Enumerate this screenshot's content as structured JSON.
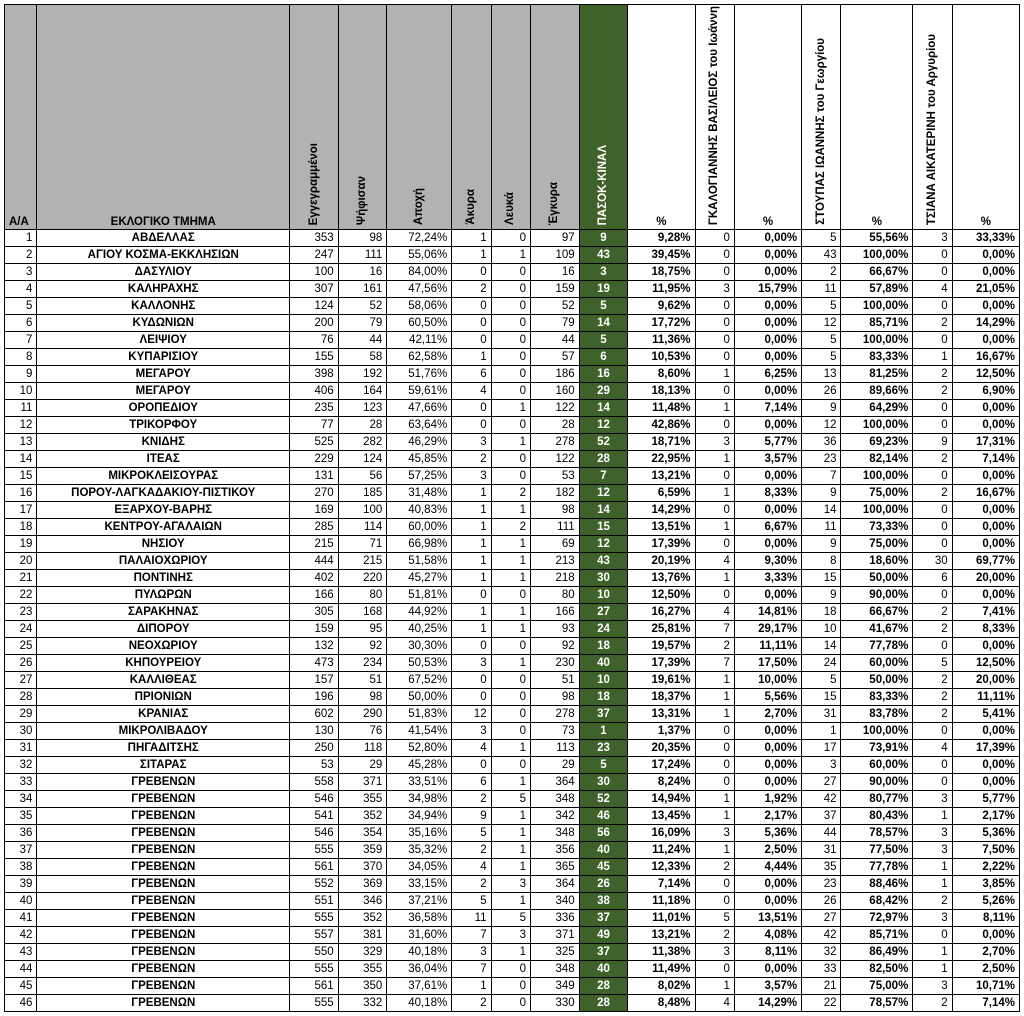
{
  "headers": {
    "aa": "A/A",
    "name": "ΕΚΛΟΓΙΚΟ ΤΜΗΜΑ",
    "registered": "Εγγεγραμμένοι",
    "voted": "Ψήφισαν",
    "abstain": "Αποχή",
    "invalid": "Άκυρα",
    "blank": "Λευκά",
    "valid": "Έγκυρα",
    "party": "ΠΑΣΟΚ-ΚΙΝΑΛ",
    "pct": "%",
    "cand1": "ΓΚΑΛΟΓΙΑΝΝΗΣ ΒΑΣΙΛΕΙΟΣ του Ιωάννη",
    "cand2": "ΣΤΟΥΠΑΣ ΙΩΑΝΝΗΣ του Γεωργίου",
    "cand3": "ΤΣΙΑΝΑ ΑΙΚΑΤΕΡΙΝΗ του Αργυρίου"
  },
  "rows": [
    {
      "i": 1,
      "name": "ΑΒΔΕΛΛΑΣ",
      "reg": 353,
      "vot": 98,
      "abs": "72,24%",
      "inv": 1,
      "bl": 0,
      "val": 97,
      "party": 9,
      "ppct": "9,28%",
      "c1": 0,
      "c1p": "0,00%",
      "c2": 5,
      "c2p": "55,56%",
      "c3": 3,
      "c3p": "33,33%"
    },
    {
      "i": 2,
      "name": "ΑΓΙΟΥ ΚΟΣΜΑ-ΕΚΚΛΗΣΙΩΝ",
      "reg": 247,
      "vot": 111,
      "abs": "55,06%",
      "inv": 1,
      "bl": 1,
      "val": 109,
      "party": 43,
      "ppct": "39,45%",
      "c1": 0,
      "c1p": "0,00%",
      "c2": 43,
      "c2p": "100,00%",
      "c3": 0,
      "c3p": "0,00%"
    },
    {
      "i": 3,
      "name": "ΔΑΣΥΛΙΟΥ",
      "reg": 100,
      "vot": 16,
      "abs": "84,00%",
      "inv": 0,
      "bl": 0,
      "val": 16,
      "party": 3,
      "ppct": "18,75%",
      "c1": 0,
      "c1p": "0,00%",
      "c2": 2,
      "c2p": "66,67%",
      "c3": 0,
      "c3p": "0,00%"
    },
    {
      "i": 4,
      "name": "ΚΑΛΗΡΑΧΗΣ",
      "reg": 307,
      "vot": 161,
      "abs": "47,56%",
      "inv": 2,
      "bl": 0,
      "val": 159,
      "party": 19,
      "ppct": "11,95%",
      "c1": 3,
      "c1p": "15,79%",
      "c2": 11,
      "c2p": "57,89%",
      "c3": 4,
      "c3p": "21,05%"
    },
    {
      "i": 5,
      "name": "ΚΑΛΛΟΝΗΣ",
      "reg": 124,
      "vot": 52,
      "abs": "58,06%",
      "inv": 0,
      "bl": 0,
      "val": 52,
      "party": 5,
      "ppct": "9,62%",
      "c1": 0,
      "c1p": "0,00%",
      "c2": 5,
      "c2p": "100,00%",
      "c3": 0,
      "c3p": "0,00%"
    },
    {
      "i": 6,
      "name": "ΚΥΔΩΝΙΩΝ",
      "reg": 200,
      "vot": 79,
      "abs": "60,50%",
      "inv": 0,
      "bl": 0,
      "val": 79,
      "party": 14,
      "ppct": "17,72%",
      "c1": 0,
      "c1p": "0,00%",
      "c2": 12,
      "c2p": "85,71%",
      "c3": 2,
      "c3p": "14,29%"
    },
    {
      "i": 7,
      "name": "ΛΕΙΨΙΟΥ",
      "reg": 76,
      "vot": 44,
      "abs": "42,11%",
      "inv": 0,
      "bl": 0,
      "val": 44,
      "party": 5,
      "ppct": "11,36%",
      "c1": 0,
      "c1p": "0,00%",
      "c2": 5,
      "c2p": "100,00%",
      "c3": 0,
      "c3p": "0,00%"
    },
    {
      "i": 8,
      "name": "ΚΥΠΑΡΙΣΙΟΥ",
      "reg": 155,
      "vot": 58,
      "abs": "62,58%",
      "inv": 1,
      "bl": 0,
      "val": 57,
      "party": 6,
      "ppct": "10,53%",
      "c1": 0,
      "c1p": "0,00%",
      "c2": 5,
      "c2p": "83,33%",
      "c3": 1,
      "c3p": "16,67%"
    },
    {
      "i": 9,
      "name": "ΜΕΓΑΡΟΥ",
      "reg": 398,
      "vot": 192,
      "abs": "51,76%",
      "inv": 6,
      "bl": 0,
      "val": 186,
      "party": 16,
      "ppct": "8,60%",
      "c1": 1,
      "c1p": "6,25%",
      "c2": 13,
      "c2p": "81,25%",
      "c3": 2,
      "c3p": "12,50%"
    },
    {
      "i": 10,
      "name": "ΜΕΓΑΡΟΥ",
      "reg": 406,
      "vot": 164,
      "abs": "59,61%",
      "inv": 4,
      "bl": 0,
      "val": 160,
      "party": 29,
      "ppct": "18,13%",
      "c1": 0,
      "c1p": "0,00%",
      "c2": 26,
      "c2p": "89,66%",
      "c3": 2,
      "c3p": "6,90%"
    },
    {
      "i": 11,
      "name": "ΟΡΟΠΕΔΙΟΥ",
      "reg": 235,
      "vot": 123,
      "abs": "47,66%",
      "inv": 0,
      "bl": 1,
      "val": 122,
      "party": 14,
      "ppct": "11,48%",
      "c1": 1,
      "c1p": "7,14%",
      "c2": 9,
      "c2p": "64,29%",
      "c3": 0,
      "c3p": "0,00%"
    },
    {
      "i": 12,
      "name": "ΤΡΙΚΟΡΦΟΥ",
      "reg": 77,
      "vot": 28,
      "abs": "63,64%",
      "inv": 0,
      "bl": 0,
      "val": 28,
      "party": 12,
      "ppct": "42,86%",
      "c1": 0,
      "c1p": "0,00%",
      "c2": 12,
      "c2p": "100,00%",
      "c3": 0,
      "c3p": "0,00%"
    },
    {
      "i": 13,
      "name": "ΚΝΙΔΗΣ",
      "reg": 525,
      "vot": 282,
      "abs": "46,29%",
      "inv": 3,
      "bl": 1,
      "val": 278,
      "party": 52,
      "ppct": "18,71%",
      "c1": 3,
      "c1p": "5,77%",
      "c2": 36,
      "c2p": "69,23%",
      "c3": 9,
      "c3p": "17,31%"
    },
    {
      "i": 14,
      "name": "ΙΤΕΑΣ",
      "reg": 229,
      "vot": 124,
      "abs": "45,85%",
      "inv": 2,
      "bl": 0,
      "val": 122,
      "party": 28,
      "ppct": "22,95%",
      "c1": 1,
      "c1p": "3,57%",
      "c2": 23,
      "c2p": "82,14%",
      "c3": 2,
      "c3p": "7,14%"
    },
    {
      "i": 15,
      "name": "ΜΙΚΡΟΚΛΕΙΣΟΥΡΑΣ",
      "reg": 131,
      "vot": 56,
      "abs": "57,25%",
      "inv": 3,
      "bl": 0,
      "val": 53,
      "party": 7,
      "ppct": "13,21%",
      "c1": 0,
      "c1p": "0,00%",
      "c2": 7,
      "c2p": "100,00%",
      "c3": 0,
      "c3p": "0,00%"
    },
    {
      "i": 16,
      "name": "ΠΟΡΟΥ-ΛΑΓΚΑΔΑΚΙΟΥ-ΠΙΣΤΙΚΟΥ",
      "reg": 270,
      "vot": 185,
      "abs": "31,48%",
      "inv": 1,
      "bl": 2,
      "val": 182,
      "party": 12,
      "ppct": "6,59%",
      "c1": 1,
      "c1p": "8,33%",
      "c2": 9,
      "c2p": "75,00%",
      "c3": 2,
      "c3p": "16,67%"
    },
    {
      "i": 17,
      "name": "ΕΞΑΡΧΟΥ-ΒΑΡΗΣ",
      "reg": 169,
      "vot": 100,
      "abs": "40,83%",
      "inv": 1,
      "bl": 1,
      "val": 98,
      "party": 14,
      "ppct": "14,29%",
      "c1": 0,
      "c1p": "0,00%",
      "c2": 14,
      "c2p": "100,00%",
      "c3": 0,
      "c3p": "0,00%"
    },
    {
      "i": 18,
      "name": "ΚΕΝΤΡΟΥ-ΑΓΑΛΑΙΩΝ",
      "reg": 285,
      "vot": 114,
      "abs": "60,00%",
      "inv": 1,
      "bl": 2,
      "val": 111,
      "party": 15,
      "ppct": "13,51%",
      "c1": 1,
      "c1p": "6,67%",
      "c2": 11,
      "c2p": "73,33%",
      "c3": 0,
      "c3p": "0,00%"
    },
    {
      "i": 19,
      "name": "ΝΗΣΙΟΥ",
      "reg": 215,
      "vot": 71,
      "abs": "66,98%",
      "inv": 1,
      "bl": 1,
      "val": 69,
      "party": 12,
      "ppct": "17,39%",
      "c1": 0,
      "c1p": "0,00%",
      "c2": 9,
      "c2p": "75,00%",
      "c3": 0,
      "c3p": "0,00%"
    },
    {
      "i": 20,
      "name": "ΠΑΛΑΙΟΧΩΡΙΟΥ",
      "reg": 444,
      "vot": 215,
      "abs": "51,58%",
      "inv": 1,
      "bl": 1,
      "val": 213,
      "party": 43,
      "ppct": "20,19%",
      "c1": 4,
      "c1p": "9,30%",
      "c2": 8,
      "c2p": "18,60%",
      "c3": 30,
      "c3p": "69,77%"
    },
    {
      "i": 21,
      "name": "ΠΟΝΤΙΝΗΣ",
      "reg": 402,
      "vot": 220,
      "abs": "45,27%",
      "inv": 1,
      "bl": 1,
      "val": 218,
      "party": 30,
      "ppct": "13,76%",
      "c1": 1,
      "c1p": "3,33%",
      "c2": 15,
      "c2p": "50,00%",
      "c3": 6,
      "c3p": "20,00%"
    },
    {
      "i": 22,
      "name": "ΠΥΛΩΡΩΝ",
      "reg": 166,
      "vot": 80,
      "abs": "51,81%",
      "inv": 0,
      "bl": 0,
      "val": 80,
      "party": 10,
      "ppct": "12,50%",
      "c1": 0,
      "c1p": "0,00%",
      "c2": 9,
      "c2p": "90,00%",
      "c3": 0,
      "c3p": "0,00%"
    },
    {
      "i": 23,
      "name": "ΣΑΡΑΚΗΝΑΣ",
      "reg": 305,
      "vot": 168,
      "abs": "44,92%",
      "inv": 1,
      "bl": 1,
      "val": 166,
      "party": 27,
      "ppct": "16,27%",
      "c1": 4,
      "c1p": "14,81%",
      "c2": 18,
      "c2p": "66,67%",
      "c3": 2,
      "c3p": "7,41%"
    },
    {
      "i": 24,
      "name": "ΔΙΠΟΡΟΥ",
      "reg": 159,
      "vot": 95,
      "abs": "40,25%",
      "inv": 1,
      "bl": 1,
      "val": 93,
      "party": 24,
      "ppct": "25,81%",
      "c1": 7,
      "c1p": "29,17%",
      "c2": 10,
      "c2p": "41,67%",
      "c3": 2,
      "c3p": "8,33%"
    },
    {
      "i": 25,
      "name": "ΝΕΟΧΩΡΙΟΥ",
      "reg": 132,
      "vot": 92,
      "abs": "30,30%",
      "inv": 0,
      "bl": 0,
      "val": 92,
      "party": 18,
      "ppct": "19,57%",
      "c1": 2,
      "c1p": "11,11%",
      "c2": 14,
      "c2p": "77,78%",
      "c3": 0,
      "c3p": "0,00%"
    },
    {
      "i": 26,
      "name": "ΚΗΠΟΥΡΕΙΟΥ",
      "reg": 473,
      "vot": 234,
      "abs": "50,53%",
      "inv": 3,
      "bl": 1,
      "val": 230,
      "party": 40,
      "ppct": "17,39%",
      "c1": 7,
      "c1p": "17,50%",
      "c2": 24,
      "c2p": "60,00%",
      "c3": 5,
      "c3p": "12,50%"
    },
    {
      "i": 27,
      "name": "ΚΑΛΛΙΘΕΑΣ",
      "reg": 157,
      "vot": 51,
      "abs": "67,52%",
      "inv": 0,
      "bl": 0,
      "val": 51,
      "party": 10,
      "ppct": "19,61%",
      "c1": 1,
      "c1p": "10,00%",
      "c2": 5,
      "c2p": "50,00%",
      "c3": 2,
      "c3p": "20,00%"
    },
    {
      "i": 28,
      "name": "ΠΡΙΟΝΙΩΝ",
      "reg": 196,
      "vot": 98,
      "abs": "50,00%",
      "inv": 0,
      "bl": 0,
      "val": 98,
      "party": 18,
      "ppct": "18,37%",
      "c1": 1,
      "c1p": "5,56%",
      "c2": 15,
      "c2p": "83,33%",
      "c3": 2,
      "c3p": "11,11%"
    },
    {
      "i": 29,
      "name": "ΚΡΑΝΙΑΣ",
      "reg": 602,
      "vot": 290,
      "abs": "51,83%",
      "inv": 12,
      "bl": 0,
      "val": 278,
      "party": 37,
      "ppct": "13,31%",
      "c1": 1,
      "c1p": "2,70%",
      "c2": 31,
      "c2p": "83,78%",
      "c3": 2,
      "c3p": "5,41%"
    },
    {
      "i": 30,
      "name": "ΜΙΚΡΟΛΙΒΑΔΟΥ",
      "reg": 130,
      "vot": 76,
      "abs": "41,54%",
      "inv": 3,
      "bl": 0,
      "val": 73,
      "party": 1,
      "ppct": "1,37%",
      "c1": 0,
      "c1p": "0,00%",
      "c2": 1,
      "c2p": "100,00%",
      "c3": 0,
      "c3p": "0,00%"
    },
    {
      "i": 31,
      "name": "ΠΗΓΑΔΙΤΣΗΣ",
      "reg": 250,
      "vot": 118,
      "abs": "52,80%",
      "inv": 4,
      "bl": 1,
      "val": 113,
      "party": 23,
      "ppct": "20,35%",
      "c1": 0,
      "c1p": "0,00%",
      "c2": 17,
      "c2p": "73,91%",
      "c3": 4,
      "c3p": "17,39%"
    },
    {
      "i": 32,
      "name": "ΣΙΤΑΡΑΣ",
      "reg": 53,
      "vot": 29,
      "abs": "45,28%",
      "inv": 0,
      "bl": 0,
      "val": 29,
      "party": 5,
      "ppct": "17,24%",
      "c1": 0,
      "c1p": "0,00%",
      "c2": 3,
      "c2p": "60,00%",
      "c3": 0,
      "c3p": "0,00%"
    },
    {
      "i": 33,
      "name": "ΓΡΕΒΕΝΩΝ",
      "reg": 558,
      "vot": 371,
      "abs": "33,51%",
      "inv": 6,
      "bl": 1,
      "val": 364,
      "party": 30,
      "ppct": "8,24%",
      "c1": 0,
      "c1p": "0,00%",
      "c2": 27,
      "c2p": "90,00%",
      "c3": 0,
      "c3p": "0,00%"
    },
    {
      "i": 34,
      "name": "ΓΡΕΒΕΝΩΝ",
      "reg": 546,
      "vot": 355,
      "abs": "34,98%",
      "inv": 2,
      "bl": 5,
      "val": 348,
      "party": 52,
      "ppct": "14,94%",
      "c1": 1,
      "c1p": "1,92%",
      "c2": 42,
      "c2p": "80,77%",
      "c3": 3,
      "c3p": "5,77%"
    },
    {
      "i": 35,
      "name": "ΓΡΕΒΕΝΩΝ",
      "reg": 541,
      "vot": 352,
      "abs": "34,94%",
      "inv": 9,
      "bl": 1,
      "val": 342,
      "party": 46,
      "ppct": "13,45%",
      "c1": 1,
      "c1p": "2,17%",
      "c2": 37,
      "c2p": "80,43%",
      "c3": 1,
      "c3p": "2,17%"
    },
    {
      "i": 36,
      "name": "ΓΡΕΒΕΝΩΝ",
      "reg": 546,
      "vot": 354,
      "abs": "35,16%",
      "inv": 5,
      "bl": 1,
      "val": 348,
      "party": 56,
      "ppct": "16,09%",
      "c1": 3,
      "c1p": "5,36%",
      "c2": 44,
      "c2p": "78,57%",
      "c3": 3,
      "c3p": "5,36%"
    },
    {
      "i": 37,
      "name": "ΓΡΕΒΕΝΩΝ",
      "reg": 555,
      "vot": 359,
      "abs": "35,32%",
      "inv": 2,
      "bl": 1,
      "val": 356,
      "party": 40,
      "ppct": "11,24%",
      "c1": 1,
      "c1p": "2,50%",
      "c2": 31,
      "c2p": "77,50%",
      "c3": 3,
      "c3p": "7,50%"
    },
    {
      "i": 38,
      "name": "ΓΡΕΒΕΝΩΝ",
      "reg": 561,
      "vot": 370,
      "abs": "34,05%",
      "inv": 4,
      "bl": 1,
      "val": 365,
      "party": 45,
      "ppct": "12,33%",
      "c1": 2,
      "c1p": "4,44%",
      "c2": 35,
      "c2p": "77,78%",
      "c3": 1,
      "c3p": "2,22%"
    },
    {
      "i": 39,
      "name": "ΓΡΕΒΕΝΩΝ",
      "reg": 552,
      "vot": 369,
      "abs": "33,15%",
      "inv": 2,
      "bl": 3,
      "val": 364,
      "party": 26,
      "ppct": "7,14%",
      "c1": 0,
      "c1p": "0,00%",
      "c2": 23,
      "c2p": "88,46%",
      "c3": 1,
      "c3p": "3,85%"
    },
    {
      "i": 40,
      "name": "ΓΡΕΒΕΝΩΝ",
      "reg": 551,
      "vot": 346,
      "abs": "37,21%",
      "inv": 5,
      "bl": 1,
      "val": 340,
      "party": 38,
      "ppct": "11,18%",
      "c1": 0,
      "c1p": "0,00%",
      "c2": 26,
      "c2p": "68,42%",
      "c3": 2,
      "c3p": "5,26%"
    },
    {
      "i": 41,
      "name": "ΓΡΕΒΕΝΩΝ",
      "reg": 555,
      "vot": 352,
      "abs": "36,58%",
      "inv": 11,
      "bl": 5,
      "val": 336,
      "party": 37,
      "ppct": "11,01%",
      "c1": 5,
      "c1p": "13,51%",
      "c2": 27,
      "c2p": "72,97%",
      "c3": 3,
      "c3p": "8,11%"
    },
    {
      "i": 42,
      "name": "ΓΡΕΒΕΝΩΝ",
      "reg": 557,
      "vot": 381,
      "abs": "31,60%",
      "inv": 7,
      "bl": 3,
      "val": 371,
      "party": 49,
      "ppct": "13,21%",
      "c1": 2,
      "c1p": "4,08%",
      "c2": 42,
      "c2p": "85,71%",
      "c3": 0,
      "c3p": "0,00%"
    },
    {
      "i": 43,
      "name": "ΓΡΕΒΕΝΩΝ",
      "reg": 550,
      "vot": 329,
      "abs": "40,18%",
      "inv": 3,
      "bl": 1,
      "val": 325,
      "party": 37,
      "ppct": "11,38%",
      "c1": 3,
      "c1p": "8,11%",
      "c2": 32,
      "c2p": "86,49%",
      "c3": 1,
      "c3p": "2,70%"
    },
    {
      "i": 44,
      "name": "ΓΡΕΒΕΝΩΝ",
      "reg": 555,
      "vot": 355,
      "abs": "36,04%",
      "inv": 7,
      "bl": 0,
      "val": 348,
      "party": 40,
      "ppct": "11,49%",
      "c1": 0,
      "c1p": "0,00%",
      "c2": 33,
      "c2p": "82,50%",
      "c3": 1,
      "c3p": "2,50%"
    },
    {
      "i": 45,
      "name": "ΓΡΕΒΕΝΩΝ",
      "reg": 561,
      "vot": 350,
      "abs": "37,61%",
      "inv": 1,
      "bl": 0,
      "val": 349,
      "party": 28,
      "ppct": "8,02%",
      "c1": 1,
      "c1p": "3,57%",
      "c2": 21,
      "c2p": "75,00%",
      "c3": 3,
      "c3p": "10,71%"
    },
    {
      "i": 46,
      "name": "ΓΡΕΒΕΝΩΝ",
      "reg": 555,
      "vot": 332,
      "abs": "40,18%",
      "inv": 2,
      "bl": 0,
      "val": 330,
      "party": 28,
      "ppct": "8,48%",
      "c1": 4,
      "c1p": "14,29%",
      "c2": 22,
      "c2p": "78,57%",
      "c3": 2,
      "c3p": "7,14%"
    }
  ]
}
